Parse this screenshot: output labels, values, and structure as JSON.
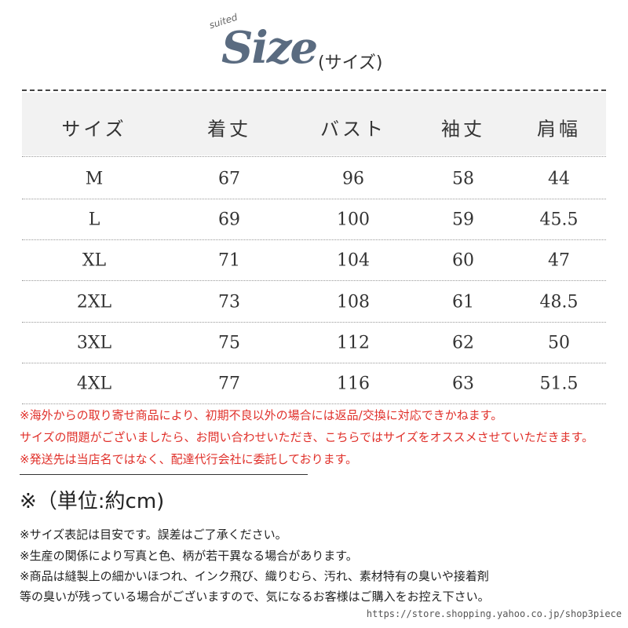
{
  "header": {
    "logo_small": "suited",
    "logo_big": "Size",
    "logo_sub": "(サイズ)"
  },
  "table": {
    "columns": [
      "サイズ",
      "着丈",
      "バスト",
      "袖丈",
      "肩幅"
    ],
    "rows": [
      [
        "M",
        67,
        96,
        58,
        44
      ],
      [
        "L",
        69,
        100,
        59,
        45.5
      ],
      [
        "XL",
        71,
        104,
        60,
        47
      ],
      [
        "2XL",
        73,
        108,
        61,
        48.5
      ],
      [
        "3XL",
        75,
        112,
        62,
        50
      ],
      [
        "4XL",
        77,
        116,
        63,
        51.5
      ]
    ]
  },
  "notes_red": [
    "※海外からの取り寄せ商品により、初期不良以外の場合には返品/交換に対応できかねます。",
    "サイズの問題がございましたら、お問い合わせいただき、こちらではサイズをオススメさせていただきます。",
    "※発送先は当店名ではなく、配達代行会社に委託しております。"
  ],
  "unit": "※（単位:約cm)",
  "notes": [
    "※サイズ表記は目安です。誤差はご了承ください。",
    "※生産の関係により写真と色、柄が若干異なる場合があります。",
    "※商品は縫製上の細かいほつれ、インク飛び、織りむら、汚れ、素材特有の臭いや接着剤",
    "等の臭いが残っている場合がございますので、気になるお客様はご購入をお控え下さい。"
  ],
  "url": "https://store.shopping.yahoo.co.jp/shop3piece"
}
